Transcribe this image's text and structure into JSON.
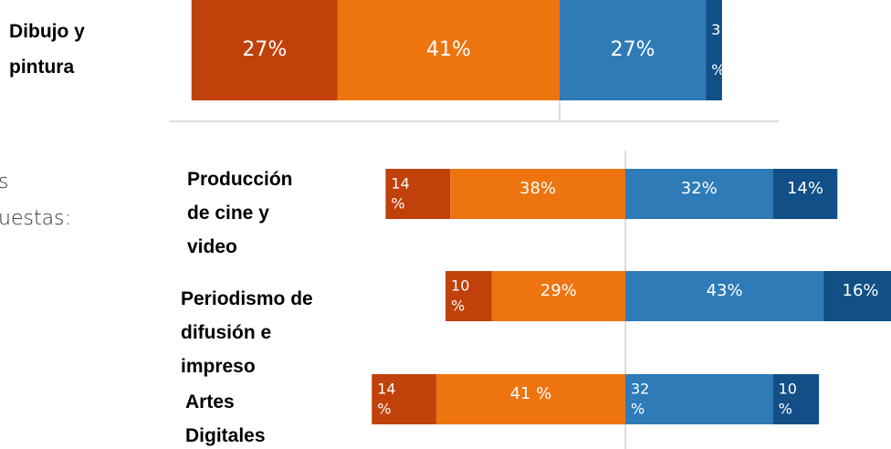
{
  "fragments": [
    "s",
    "uestas:"
  ],
  "chart_data": [
    {
      "type": "bar",
      "categories": [
        "Dibujo y\npintura"
      ],
      "series": [
        {
          "color": "#c0410a",
          "values": [
            27
          ],
          "value_labels": [
            "27%"
          ]
        },
        {
          "color": "#ee7410",
          "values": [
            41
          ],
          "value_labels": [
            "41%"
          ]
        },
        {
          "color": "#2e7bb8",
          "values": [
            27
          ],
          "value_labels": [
            "27%"
          ]
        },
        {
          "color": "#114f86",
          "values": [
            3
          ],
          "value_labels": [
            "3\n%"
          ]
        }
      ]
    },
    {
      "type": "bar",
      "categories": [
        "Producción\nde cine y\nvideo",
        "Periodismo de\ndifusión e\nimpreso",
        "Artes\nDigitales"
      ],
      "series": [
        {
          "color": "#c0410a",
          "values": [
            14,
            10,
            14
          ],
          "value_labels": [
            "14\n%",
            "10\n%",
            "14\n%"
          ]
        },
        {
          "color": "#ee7410",
          "values": [
            38,
            29,
            41
          ],
          "value_labels": [
            "38%",
            "29%",
            "41 %"
          ]
        },
        {
          "color": "#2e7bb8",
          "values": [
            32,
            43,
            32
          ],
          "value_labels": [
            "32%",
            "43%",
            "32\n%"
          ]
        },
        {
          "color": "#114f86",
          "values": [
            14,
            16,
            10
          ],
          "value_labels": [
            "14%",
            "16%",
            "10\n%"
          ]
        }
      ]
    }
  ]
}
